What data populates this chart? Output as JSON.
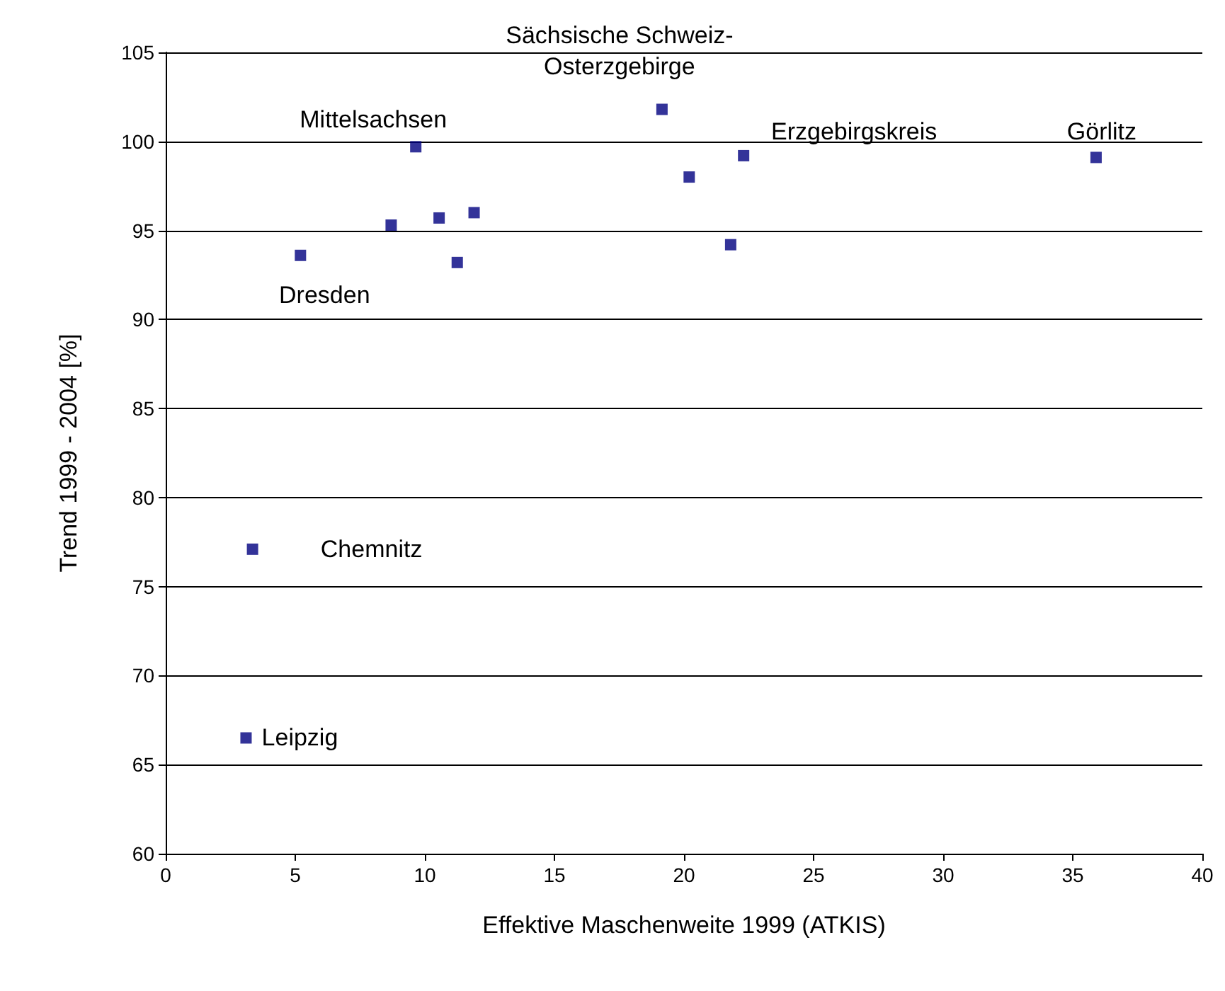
{
  "chart_data": {
    "type": "scatter",
    "xlabel": "Effektive Maschenweite 1999 (ATKIS)",
    "ylabel": "Trend 1999 - 2004 [%]",
    "x": [
      5.2,
      8.7,
      9.65,
      10.55,
      11.9,
      11.25,
      19.15,
      20.2,
      22.3,
      21.8,
      35.9,
      3.35,
      3.1
    ],
    "series": [
      {
        "color": "#000080",
        "values": [
          93.6,
          95.3,
          99.7,
          95.7,
          96.0,
          93.2,
          101.8,
          98.0,
          99.2,
          94.2,
          99.1,
          77.1,
          66.5
        ]
      }
    ],
    "xlim": [
      0,
      40
    ],
    "xticks": [
      0,
      5,
      10,
      15,
      20,
      25,
      30,
      35,
      40
    ],
    "ylim": [
      60,
      105
    ],
    "yticks": [
      60,
      65,
      70,
      75,
      80,
      85,
      90,
      95,
      100,
      105
    ],
    "grid": "y",
    "marker": "square",
    "annotations": [
      {
        "text": "Mittelsachsen",
        "x": 9.65,
        "y": 99.7
      },
      {
        "text": "Dresden",
        "x": 5.2,
        "y": 93.6
      },
      {
        "text": "Sächsische Schweiz-\nOsterzgebirge",
        "x": 19.15,
        "y": 101.8
      },
      {
        "text": "Erzgebirgskreis",
        "x": 22.3,
        "y": 99.2
      },
      {
        "text": "Görlitz",
        "x": 35.9,
        "y": 99.1
      },
      {
        "text": "Chemnitz",
        "x": 3.35,
        "y": 77.1
      },
      {
        "text": "Leipzig",
        "x": 3.1,
        "y": 66.5
      }
    ]
  }
}
